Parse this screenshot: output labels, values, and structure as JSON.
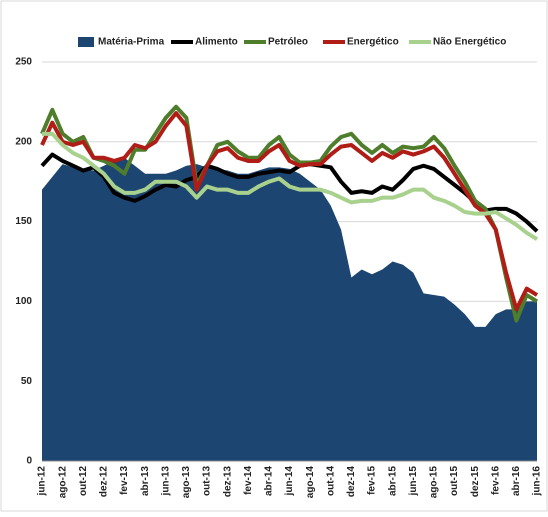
{
  "chart_data": {
    "type": "line",
    "categories": [
      "jun-12",
      null,
      "ago-12",
      null,
      "out-12",
      null,
      "dez-12",
      null,
      "fev-13",
      null,
      "abr-13",
      null,
      "jun-13",
      null,
      "ago-13",
      null,
      "out-13",
      null,
      "dez-13",
      null,
      "fev-14",
      null,
      "abr-14",
      null,
      "jun-14",
      null,
      "ago-14",
      null,
      "out-14",
      null,
      "dez-14",
      null,
      "fev-15",
      null,
      "abr-15",
      null,
      "jun-15",
      null,
      "ago-15",
      null,
      "out-15",
      null,
      "dez-15",
      null,
      "fev-16",
      null,
      "abr-16",
      null,
      "jun-16"
    ],
    "series": [
      {
        "name": "Matéria-Prima",
        "color": "#1d4571",
        "area": true,
        "values": [
          170,
          178,
          186,
          184,
          183,
          182,
          185,
          188,
          190,
          185,
          180,
          180,
          180,
          182,
          185,
          186,
          184,
          183,
          182,
          180,
          180,
          182,
          184,
          184,
          183,
          180,
          175,
          170,
          160,
          145,
          115,
          120,
          117,
          120,
          125,
          123,
          118,
          105,
          104,
          103,
          98,
          92,
          84,
          84,
          92,
          95,
          95,
          100,
          100
        ]
      },
      {
        "name": "Alimento",
        "color": "#000000",
        "values": [
          185,
          192,
          188,
          185,
          182,
          184,
          178,
          168,
          165,
          163,
          166,
          170,
          173,
          172,
          176,
          178,
          185,
          183,
          180,
          178,
          178,
          180,
          181,
          182,
          181,
          185,
          186,
          185,
          184,
          175,
          168,
          169,
          168,
          172,
          170,
          176,
          183,
          185,
          183,
          178,
          173,
          168,
          162,
          157,
          158,
          158,
          155,
          150,
          144
        ]
      },
      {
        "name": "Petróleo",
        "color": "#4e7d2c",
        "values": [
          205,
          220,
          205,
          200,
          203,
          190,
          188,
          185,
          180,
          195,
          195,
          205,
          215,
          222,
          215,
          173,
          185,
          198,
          200,
          194,
          190,
          190,
          198,
          203,
          192,
          187,
          187,
          188,
          197,
          203,
          205,
          198,
          193,
          198,
          193,
          197,
          196,
          197,
          203,
          196,
          185,
          175,
          163,
          158,
          145,
          115,
          88,
          104,
          100
        ]
      },
      {
        "name": "Energético",
        "color": "#b01c16",
        "values": [
          198,
          212,
          200,
          198,
          200,
          190,
          190,
          188,
          190,
          198,
          196,
          200,
          210,
          218,
          210,
          170,
          185,
          194,
          196,
          190,
          188,
          188,
          194,
          198,
          188,
          185,
          186,
          186,
          192,
          197,
          198,
          193,
          188,
          193,
          190,
          194,
          192,
          194,
          197,
          190,
          180,
          170,
          160,
          155,
          145,
          118,
          95,
          108,
          104
        ]
      },
      {
        "name": "Não Energético",
        "color": "#a9d18e",
        "values": [
          205,
          205,
          198,
          193,
          190,
          185,
          180,
          172,
          168,
          168,
          170,
          175,
          175,
          175,
          172,
          165,
          172,
          170,
          170,
          168,
          168,
          172,
          175,
          177,
          172,
          170,
          170,
          170,
          168,
          165,
          162,
          163,
          163,
          165,
          165,
          167,
          170,
          170,
          165,
          163,
          160,
          156,
          155,
          155,
          156,
          152,
          148,
          143,
          139
        ]
      }
    ],
    "ylim": [
      0,
      250
    ],
    "yticks": [
      0,
      50,
      100,
      150,
      200,
      250
    ],
    "grid": true
  }
}
